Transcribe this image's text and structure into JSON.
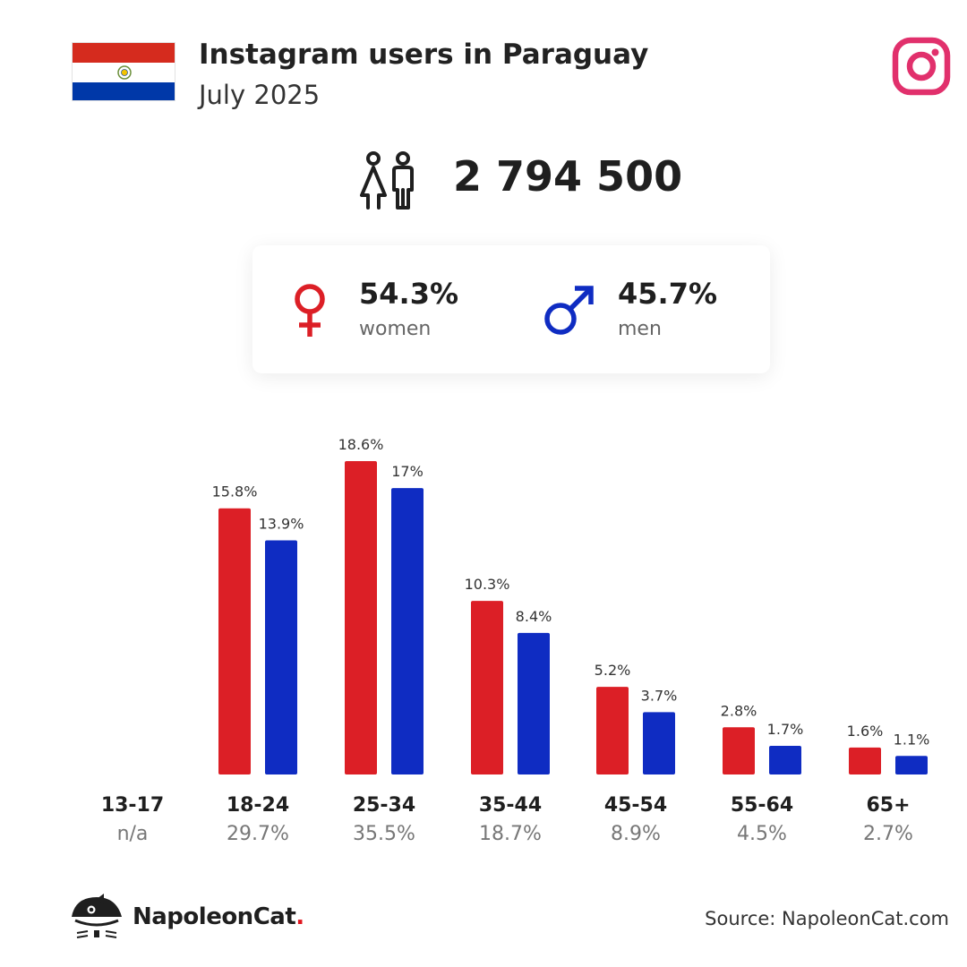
{
  "header": {
    "title": "Instagram users in Paraguay",
    "subtitle": "July 2025",
    "flag_icon": "paraguay-flag-icon",
    "brand_icon": "instagram-icon"
  },
  "total": {
    "icon": "people-icon",
    "value": "2 794 500"
  },
  "gender": {
    "women": {
      "pct": "54.3%",
      "label": "women",
      "icon": "female-symbol-icon",
      "color": "#dc1f26"
    },
    "men": {
      "pct": "45.7%",
      "label": "men",
      "icon": "male-symbol-icon",
      "color": "#0f2cc2"
    }
  },
  "chart_data": {
    "type": "bar",
    "categories": [
      "13-17",
      "18-24",
      "25-34",
      "35-44",
      "45-54",
      "55-64",
      "65+"
    ],
    "category_totals": [
      "n/a",
      "29.7%",
      "35.5%",
      "18.7%",
      "8.9%",
      "4.5%",
      "2.7%"
    ],
    "series": [
      {
        "color": "#dc1f26",
        "values": [
          null,
          15.8,
          18.6,
          10.3,
          5.2,
          2.8,
          1.6
        ],
        "labels": [
          "",
          "15.8%",
          "18.6%",
          "10.3%",
          "5.2%",
          "2.8%",
          "1.6%"
        ]
      },
      {
        "color": "#0f2cc2",
        "values": [
          null,
          13.9,
          17,
          8.4,
          3.7,
          1.7,
          1.1
        ],
        "labels": [
          "",
          "13.9%",
          "17%",
          "8.4%",
          "3.7%",
          "1.7%",
          "1.1%"
        ]
      }
    ],
    "ylim": [
      0,
      18.6
    ],
    "grid": false,
    "legend": "none"
  },
  "footer": {
    "logo_icon": "napoleoncat-logo-icon",
    "brand_name": "NapoleonCat",
    "brand_dot": ".",
    "source": "Source: NapoleonCat.com"
  }
}
